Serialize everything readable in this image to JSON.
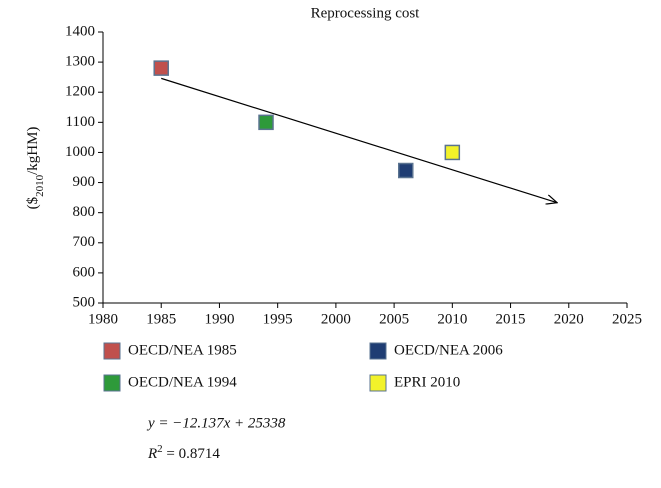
{
  "chart_data": {
    "type": "scatter",
    "title": "Reprocessing cost",
    "y_label": {
      "prefix": "($",
      "sub": "2010",
      "suffix": "/kgHM)"
    },
    "xlim": [
      1980,
      2025
    ],
    "xticks": [
      1980,
      1985,
      1990,
      1995,
      2000,
      2005,
      2010,
      2015,
      2020,
      2025
    ],
    "ylim": [
      500,
      1400
    ],
    "yticks": [
      500,
      600,
      700,
      800,
      900,
      1000,
      1100,
      1200,
      1300,
      1400
    ],
    "series": [
      {
        "name": "OECD/NEA 1985",
        "color": "#c0504d",
        "x": [
          1985
        ],
        "values": [
          1280
        ]
      },
      {
        "name": "OECD/NEA 2006",
        "color": "#1f3d73",
        "x": [
          2006
        ],
        "values": [
          940
        ]
      },
      {
        "name": "OECD/NEA 1994",
        "color": "#2e9a3a",
        "x": [
          1994
        ],
        "values": [
          1100
        ]
      },
      {
        "name": "EPRI 2010",
        "color": "#f2f22a",
        "x": [
          2010
        ],
        "values": [
          1000
        ]
      }
    ],
    "trend": {
      "x": [
        1985,
        2019
      ],
      "values": [
        1246,
        833
      ]
    },
    "equation": "y = −12.137x + 25338",
    "r2": {
      "base": "R",
      "sup": "2",
      "rest": " = 0.8714"
    }
  }
}
